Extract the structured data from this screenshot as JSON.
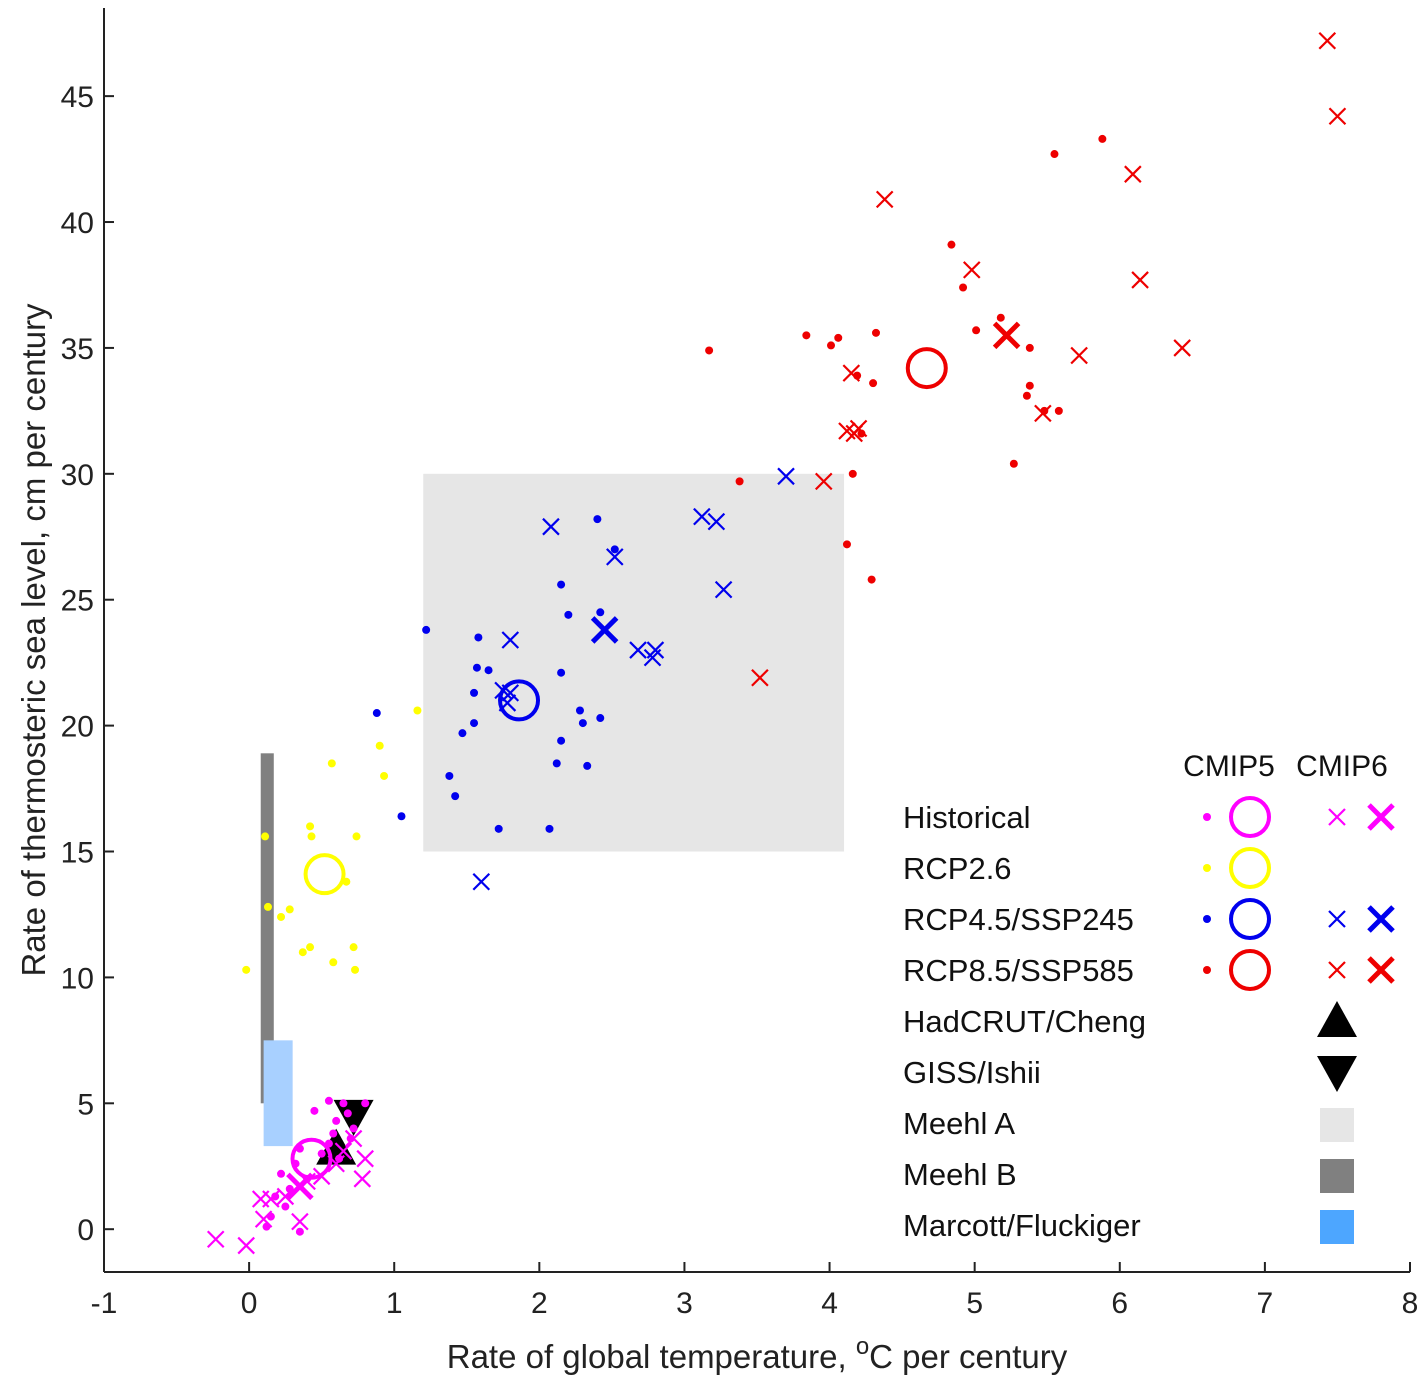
{
  "chart_data": {
    "type": "scatter",
    "xlabel_main": "Rate of global temperature, ",
    "xlabel_sup": "o",
    "xlabel_tail": "C per century",
    "ylabel": "Rate of thermosteric sea level, cm per century",
    "xlim": [
      -1,
      8
    ],
    "ylim": [
      -1.7,
      48.5
    ],
    "xticks": [
      -1,
      0,
      1,
      2,
      3,
      4,
      5,
      6,
      7,
      8
    ],
    "yticks": [
      0,
      5,
      10,
      15,
      20,
      25,
      30,
      35,
      40,
      45
    ],
    "legend_headers": [
      "CMIP5",
      "CMIP6"
    ],
    "legend_entries": [
      {
        "label": "Historical",
        "color": "#ff00ff",
        "cmip5": true,
        "cmip6": true
      },
      {
        "label": "RCP2.6",
        "color": "#ffff00",
        "cmip5": true,
        "cmip6": false
      },
      {
        "label": "RCP4.5/SSP245",
        "color": "#0000ee",
        "cmip5": true,
        "cmip6": true
      },
      {
        "label": "RCP8.5/SSP585",
        "color": "#ee0000",
        "cmip5": true,
        "cmip6": true
      },
      {
        "label": "HadCRUT/Cheng",
        "marker": "triangle-up",
        "color": "#000000"
      },
      {
        "label": "GISS/Ishii",
        "marker": "triangle-down",
        "color": "#000000"
      },
      {
        "label": "Meehl A",
        "marker": "square",
        "color": "#e6e6e6"
      },
      {
        "label": "Meehl B",
        "marker": "square",
        "color": "#808080"
      },
      {
        "label": "Marcott/Fluckiger",
        "marker": "square",
        "color": "#4da6ff"
      }
    ],
    "regions": [
      {
        "name": "Meehl A",
        "x": [
          1.2,
          4.1
        ],
        "y": [
          15,
          30
        ],
        "color": "#e6e6e6"
      },
      {
        "name": "Meehl B",
        "x": [
          0.08,
          0.17
        ],
        "y": [
          5,
          18.9
        ],
        "color": "#808080"
      },
      {
        "name": "Marcott/Fluckiger",
        "x": [
          0.1,
          0.3
        ],
        "y": [
          3.3,
          7.5
        ],
        "color": "#a8d0ff"
      }
    ],
    "series": [
      {
        "name": "Historical",
        "scenario": "Historical",
        "model": "CMIP5",
        "marker": "dot",
        "color": "#ff00ff",
        "points": [
          [
            0.55,
            5.1
          ],
          [
            0.65,
            5.0
          ],
          [
            0.8,
            5.0
          ],
          [
            0.45,
            4.7
          ],
          [
            0.68,
            4.6
          ],
          [
            0.6,
            4.3
          ],
          [
            0.72,
            4.0
          ],
          [
            0.58,
            3.8
          ],
          [
            0.7,
            3.6
          ],
          [
            0.35,
            3.2
          ],
          [
            0.5,
            3.0
          ],
          [
            0.32,
            2.6
          ],
          [
            0.22,
            2.2
          ],
          [
            0.4,
            2.0
          ],
          [
            0.28,
            1.6
          ],
          [
            0.18,
            1.3
          ],
          [
            0.25,
            0.9
          ],
          [
            0.15,
            0.5
          ],
          [
            0.12,
            0.1
          ],
          [
            0.35,
            -0.1
          ],
          [
            0.55,
            3.4
          ],
          [
            0.62,
            2.8
          ]
        ]
      },
      {
        "name": "Historical",
        "scenario": "Historical",
        "model": "CMIP5",
        "marker": "mean-circle",
        "color": "#ff00ff",
        "points": [
          [
            0.43,
            2.8
          ]
        ]
      },
      {
        "name": "Historical",
        "scenario": "Historical",
        "model": "CMIP6",
        "marker": "x",
        "color": "#ff00ff",
        "points": [
          [
            -0.23,
            -0.4
          ],
          [
            -0.02,
            -0.65
          ],
          [
            0.1,
            0.4
          ],
          [
            0.08,
            1.2
          ],
          [
            0.15,
            1.2
          ],
          [
            0.25,
            1.3
          ],
          [
            0.35,
            0.3
          ],
          [
            0.4,
            1.9
          ],
          [
            0.5,
            2.1
          ],
          [
            0.6,
            2.6
          ],
          [
            0.65,
            3.1
          ],
          [
            0.72,
            3.6
          ],
          [
            0.8,
            2.8
          ],
          [
            0.78,
            2.0
          ]
        ]
      },
      {
        "name": "Historical",
        "scenario": "Historical",
        "model": "CMIP6",
        "marker": "mean-x",
        "color": "#ff00ff",
        "points": [
          [
            0.35,
            1.7
          ]
        ]
      },
      {
        "name": "RCP2.6",
        "scenario": "RCP2.6",
        "model": "CMIP5",
        "marker": "dot",
        "color": "#ffff00",
        "points": [
          [
            -0.02,
            10.3
          ],
          [
            0.11,
            15.6
          ],
          [
            0.13,
            12.8
          ],
          [
            0.22,
            12.4
          ],
          [
            0.28,
            12.7
          ],
          [
            0.37,
            11.0
          ],
          [
            0.42,
            11.2
          ],
          [
            0.57,
            18.5
          ],
          [
            0.42,
            16.0
          ],
          [
            0.43,
            15.6
          ],
          [
            0.58,
            10.6
          ],
          [
            0.72,
            11.2
          ],
          [
            0.73,
            10.3
          ],
          [
            0.74,
            15.6
          ],
          [
            0.9,
            19.2
          ],
          [
            0.93,
            18.0
          ],
          [
            1.16,
            20.6
          ],
          [
            0.67,
            13.8
          ]
        ]
      },
      {
        "name": "RCP2.6",
        "scenario": "RCP2.6",
        "model": "CMIP5",
        "marker": "mean-circle",
        "color": "#ffff00",
        "points": [
          [
            0.52,
            14.1
          ]
        ]
      },
      {
        "name": "RCP4.5/SSP245",
        "scenario": "RCP4.5/SSP245",
        "model": "CMIP5",
        "marker": "dot",
        "color": "#0000ee",
        "points": [
          [
            0.88,
            20.5
          ],
          [
            1.05,
            16.4
          ],
          [
            1.22,
            23.8
          ],
          [
            1.38,
            18.0
          ],
          [
            1.42,
            17.2
          ],
          [
            1.47,
            19.7
          ],
          [
            1.55,
            21.3
          ],
          [
            1.55,
            20.1
          ],
          [
            1.57,
            22.3
          ],
          [
            1.58,
            23.5
          ],
          [
            1.65,
            22.2
          ],
          [
            1.72,
            15.9
          ],
          [
            2.07,
            15.9
          ],
          [
            2.12,
            18.5
          ],
          [
            2.15,
            19.4
          ],
          [
            2.15,
            22.1
          ],
          [
            2.15,
            25.6
          ],
          [
            2.2,
            24.4
          ],
          [
            2.28,
            20.6
          ],
          [
            2.3,
            20.1
          ],
          [
            2.33,
            18.4
          ],
          [
            2.4,
            28.2
          ],
          [
            2.42,
            20.3
          ],
          [
            2.52,
            27.0
          ],
          [
            2.42,
            24.5
          ]
        ]
      },
      {
        "name": "RCP4.5/SSP245",
        "scenario": "RCP4.5/SSP245",
        "model": "CMIP5",
        "marker": "mean-circle",
        "color": "#0000ee",
        "points": [
          [
            1.86,
            21.0
          ]
        ]
      },
      {
        "name": "RCP4.5/SSP245",
        "scenario": "RCP4.5/SSP245",
        "model": "CMIP6",
        "marker": "x",
        "color": "#0000ee",
        "points": [
          [
            1.6,
            13.8
          ],
          [
            1.75,
            21.4
          ],
          [
            1.78,
            20.9
          ],
          [
            1.8,
            21.3
          ],
          [
            1.8,
            23.4
          ],
          [
            2.08,
            27.9
          ],
          [
            2.52,
            26.7
          ],
          [
            2.68,
            23.0
          ],
          [
            2.78,
            22.7
          ],
          [
            2.8,
            23.0
          ],
          [
            3.12,
            28.3
          ],
          [
            3.22,
            28.1
          ],
          [
            3.27,
            25.4
          ],
          [
            3.7,
            29.9
          ]
        ]
      },
      {
        "name": "RCP4.5/SSP245",
        "scenario": "RCP4.5/SSP245",
        "model": "CMIP6",
        "marker": "mean-x",
        "color": "#0000ee",
        "points": [
          [
            2.45,
            23.8
          ]
        ]
      },
      {
        "name": "RCP8.5/SSP585",
        "scenario": "RCP8.5/SSP585",
        "model": "CMIP5",
        "marker": "dot",
        "color": "#ee0000",
        "points": [
          [
            3.17,
            34.9
          ],
          [
            3.38,
            29.7
          ],
          [
            3.84,
            35.5
          ],
          [
            4.01,
            35.1
          ],
          [
            4.06,
            35.4
          ],
          [
            4.12,
            27.2
          ],
          [
            4.16,
            30.0
          ],
          [
            4.19,
            33.9
          ],
          [
            4.29,
            25.8
          ],
          [
            4.3,
            33.6
          ],
          [
            4.32,
            35.6
          ],
          [
            4.84,
            39.1
          ],
          [
            4.92,
            37.4
          ],
          [
            5.01,
            35.7
          ],
          [
            5.18,
            36.2
          ],
          [
            5.27,
            30.4
          ],
          [
            5.36,
            33.1
          ],
          [
            5.38,
            33.5
          ],
          [
            5.38,
            35.0
          ],
          [
            5.48,
            32.5
          ],
          [
            5.55,
            42.7
          ],
          [
            5.58,
            32.5
          ],
          [
            5.88,
            43.3
          ],
          [
            4.22,
            31.6
          ]
        ]
      },
      {
        "name": "RCP8.5/SSP585",
        "scenario": "RCP8.5/SSP585",
        "model": "CMIP5",
        "marker": "mean-circle",
        "color": "#ee0000",
        "points": [
          [
            4.67,
            34.2
          ]
        ]
      },
      {
        "name": "RCP8.5/SSP585",
        "scenario": "RCP8.5/SSP585",
        "model": "CMIP6",
        "marker": "x",
        "color": "#ee0000",
        "points": [
          [
            3.52,
            21.9
          ],
          [
            3.96,
            29.7
          ],
          [
            4.12,
            31.7
          ],
          [
            4.15,
            34.0
          ],
          [
            4.17,
            31.6
          ],
          [
            4.2,
            31.8
          ],
          [
            4.38,
            40.9
          ],
          [
            4.98,
            38.1
          ],
          [
            5.47,
            32.4
          ],
          [
            5.72,
            34.7
          ],
          [
            6.09,
            41.9
          ],
          [
            6.14,
            37.7
          ],
          [
            6.43,
            35.0
          ],
          [
            7.43,
            47.2
          ],
          [
            7.5,
            44.2
          ]
        ]
      },
      {
        "name": "RCP8.5/SSP585",
        "scenario": "RCP8.5/SSP585",
        "model": "CMIP6",
        "marker": "mean-x",
        "color": "#ee0000",
        "points": [
          [
            5.22,
            35.5
          ]
        ]
      },
      {
        "name": "HadCRUT/Cheng",
        "marker": "triangle-up",
        "color": "#000000",
        "points": [
          [
            0.6,
            3.2
          ]
        ]
      },
      {
        "name": "GISS/Ishii",
        "marker": "triangle-down",
        "color": "#000000",
        "points": [
          [
            0.72,
            4.5
          ]
        ]
      }
    ]
  }
}
